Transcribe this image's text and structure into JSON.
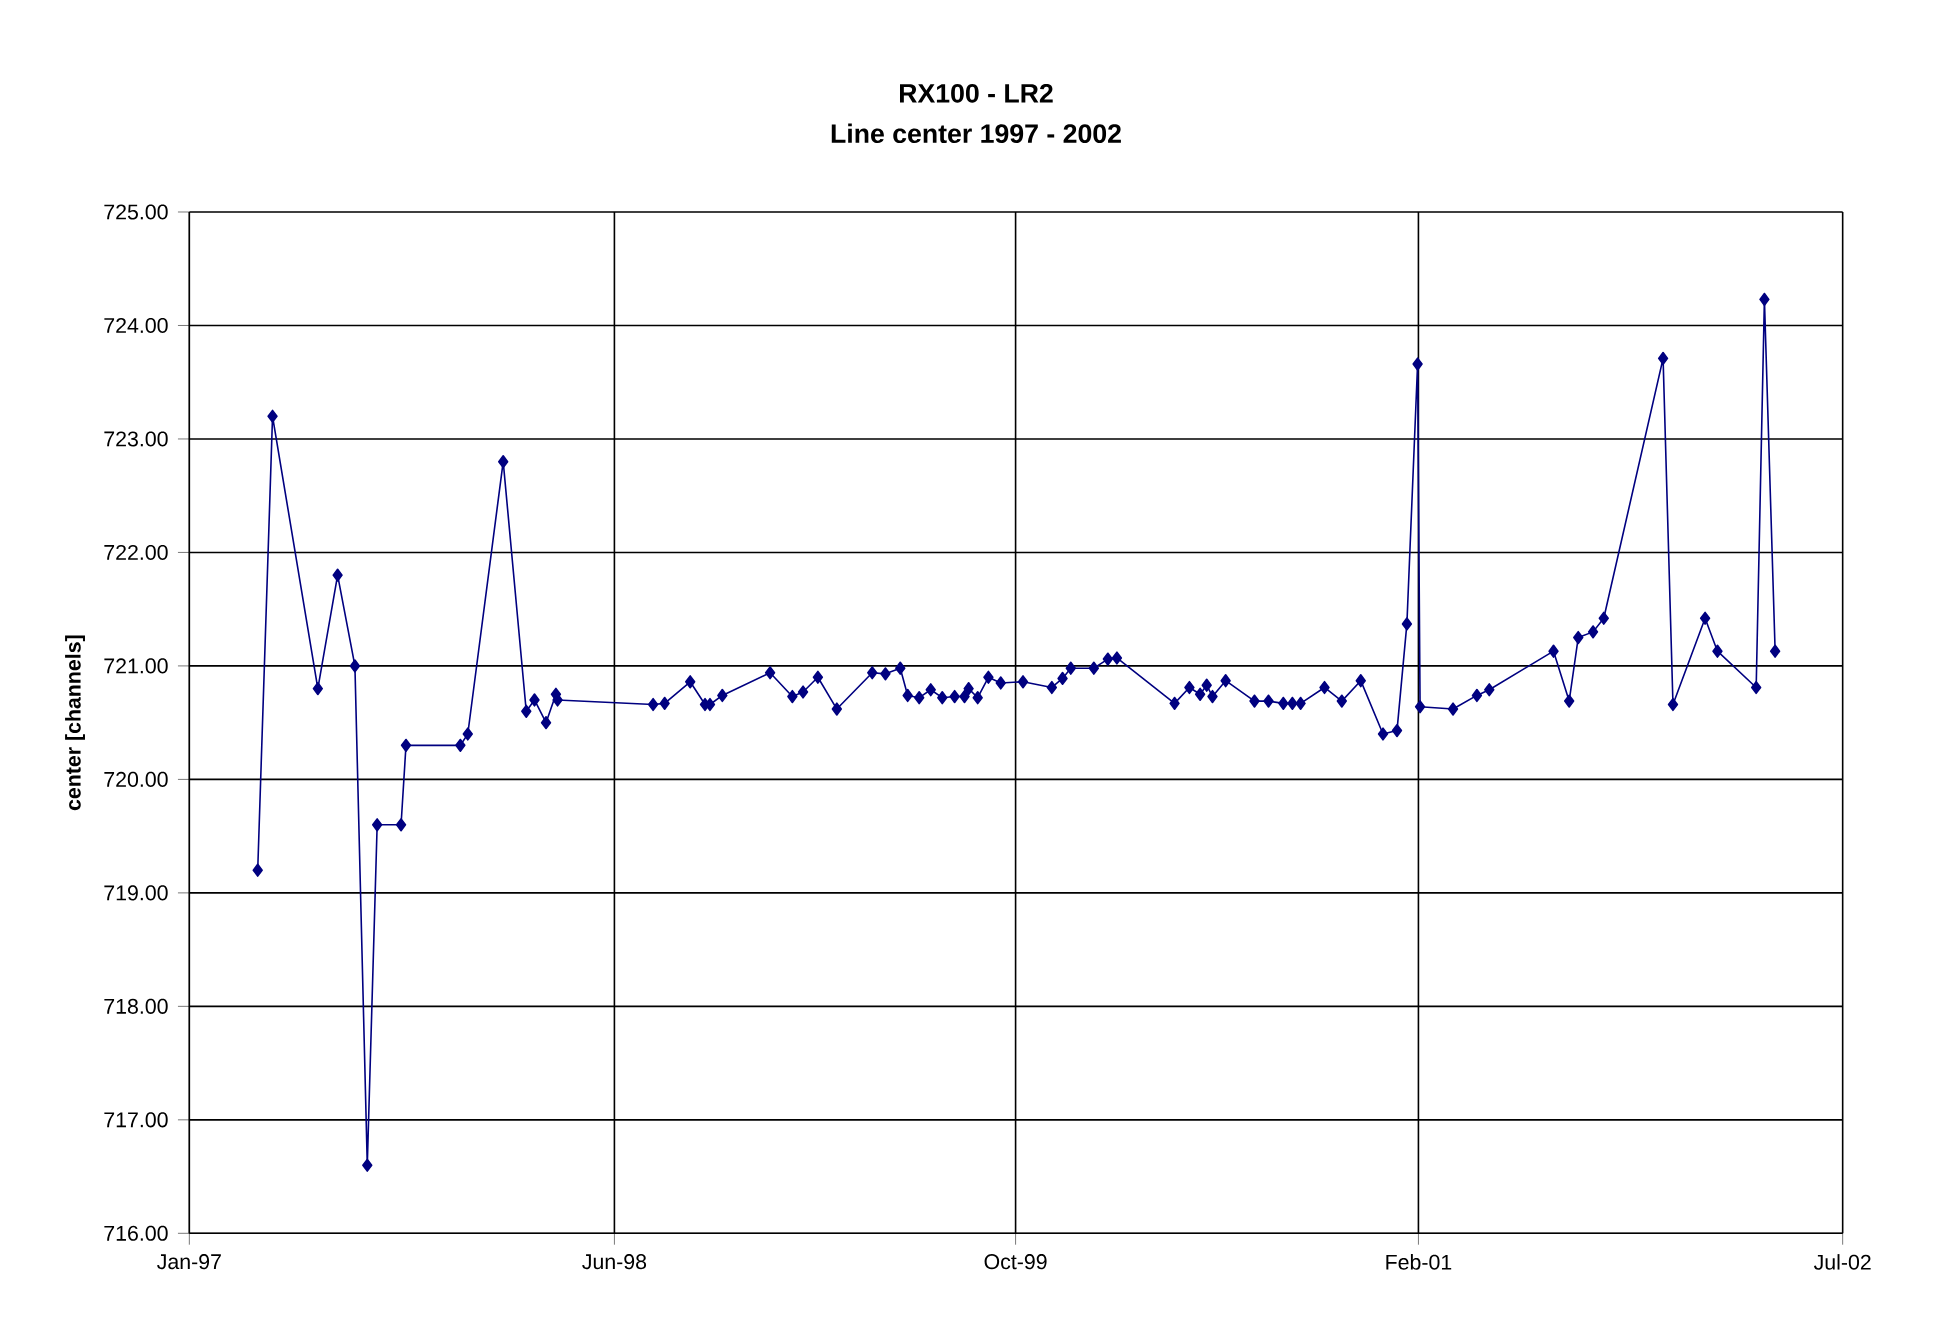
{
  "chart_data": {
    "type": "line",
    "title": "RX100 - LR2",
    "subtitle": "Line center 1997 - 2002",
    "ylabel": "center [channels]",
    "xlim": [
      "1997-01-01",
      "2002-07-01"
    ],
    "xticks": [
      {
        "value": "1997-01-01",
        "label": "Jan-97"
      },
      {
        "value": "1998-06-01",
        "label": "Jun-98"
      },
      {
        "value": "1999-10-01",
        "label": "Oct-99"
      },
      {
        "value": "2001-02-01",
        "label": "Feb-01"
      },
      {
        "value": "2002-07-01",
        "label": "Jul-02"
      }
    ],
    "ylim": [
      716,
      725
    ],
    "yticks": [
      {
        "value": 716,
        "label": "716.00"
      },
      {
        "value": 717,
        "label": "717.00"
      },
      {
        "value": 718,
        "label": "718.00"
      },
      {
        "value": 719,
        "label": "719.00"
      },
      {
        "value": 720,
        "label": "720.00"
      },
      {
        "value": 721,
        "label": "721.00"
      },
      {
        "value": 722,
        "label": "722.00"
      },
      {
        "value": 723,
        "label": "723.00"
      },
      {
        "value": 724,
        "label": "724.00"
      },
      {
        "value": 725,
        "label": "725.00"
      }
    ],
    "grid": true,
    "marker": "diamond",
    "line_style": "solid",
    "series": [
      {
        "color": "#000080",
        "x": [
          "1997-03-25",
          "1997-04-12",
          "1997-06-06",
          "1997-06-30",
          "1997-07-21",
          "1997-08-05",
          "1997-08-17",
          "1997-09-15",
          "1997-09-21",
          "1997-11-26",
          "1997-12-05",
          "1998-01-17",
          "1998-02-14",
          "1998-02-24",
          "1998-03-10",
          "1998-03-22",
          "1998-03-24",
          "1998-07-18",
          "1998-08-01",
          "1998-09-01",
          "1998-09-19",
          "1998-09-25",
          "1998-10-10",
          "1998-12-07",
          "1999-01-03",
          "1999-01-16",
          "1999-02-03",
          "1999-02-26",
          "1999-04-10",
          "1999-04-26",
          "1999-05-14",
          "1999-05-23",
          "1999-06-06",
          "1999-06-20",
          "1999-07-04",
          "1999-07-19",
          "1999-07-31",
          "1999-08-05",
          "1999-08-16",
          "1999-08-29",
          "1999-09-13",
          "1999-10-10",
          "1999-11-14",
          "1999-11-27",
          "1999-12-07",
          "2000-01-04",
          "2000-01-21",
          "2000-02-01",
          "2000-04-11",
          "2000-04-29",
          "2000-05-12",
          "2000-05-20",
          "2000-05-27",
          "2000-06-12",
          "2000-07-17",
          "2000-08-03",
          "2000-08-21",
          "2000-09-01",
          "2000-09-11",
          "2000-10-10",
          "2000-10-31",
          "2000-11-23",
          "2000-12-20",
          "2001-01-06",
          "2001-01-18",
          "2001-01-31",
          "2001-02-03",
          "2001-03-15",
          "2001-04-13",
          "2001-04-28",
          "2001-07-15",
          "2001-08-03",
          "2001-08-14",
          "2001-09-01",
          "2001-09-14",
          "2001-11-25",
          "2001-12-07",
          "2002-01-15",
          "2002-01-30",
          "2002-03-18",
          "2002-03-28",
          "2002-04-10"
        ],
        "values": [
          719.2,
          723.2,
          720.8,
          721.8,
          721.0,
          716.6,
          719.6,
          719.6,
          720.3,
          720.3,
          720.4,
          722.8,
          720.6,
          720.7,
          720.5,
          720.75,
          720.7,
          720.66,
          720.67,
          720.86,
          720.66,
          720.66,
          720.74,
          720.94,
          720.73,
          720.77,
          720.9,
          720.62,
          720.94,
          720.93,
          720.98,
          720.74,
          720.72,
          720.79,
          720.72,
          720.73,
          720.73,
          720.8,
          720.72,
          720.9,
          720.85,
          720.86,
          720.81,
          720.89,
          720.98,
          720.98,
          721.06,
          721.07,
          720.67,
          720.81,
          720.75,
          720.83,
          720.73,
          720.87,
          720.69,
          720.69,
          720.67,
          720.67,
          720.67,
          720.81,
          720.69,
          720.87,
          720.4,
          720.43,
          721.37,
          723.66,
          720.64,
          720.62,
          720.74,
          720.79,
          721.13,
          720.69,
          721.25,
          721.3,
          721.42,
          723.71,
          720.66,
          721.42,
          721.13,
          720.81,
          724.23,
          721.13
        ]
      }
    ]
  }
}
